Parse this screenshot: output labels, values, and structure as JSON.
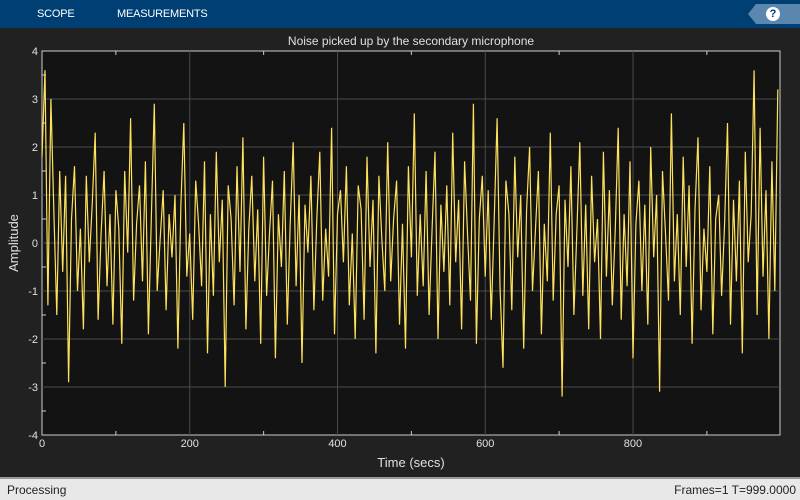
{
  "toolbar": {
    "tabs": [
      {
        "label": "SCOPE"
      },
      {
        "label": "MEASUREMENTS"
      }
    ],
    "help_icon": "question-mark-icon",
    "help_label": "?"
  },
  "status": {
    "left": "Processing",
    "right": "Frames=1  T=999.0000"
  },
  "colors": {
    "background": "#212121",
    "plot_bg": "#131313",
    "line": "#ffe25c",
    "toolbar": "#003f73"
  },
  "chart_data": {
    "type": "line",
    "title": "Noise picked up by the secondary microphone",
    "xlabel": "Time (secs)",
    "ylabel": "Amplitude",
    "xlim": [
      0,
      999
    ],
    "ylim": [
      -4,
      4
    ],
    "xticks": [
      0,
      200,
      400,
      600,
      800
    ],
    "yticks": [
      -4,
      -3,
      -2,
      -1,
      0,
      1,
      2,
      3,
      4
    ],
    "grid": true,
    "x_step": 4,
    "values": [
      1.8,
      3.6,
      -1.3,
      3.0,
      0.7,
      -1.5,
      1.5,
      -0.6,
      1.4,
      -2.9,
      0.5,
      1.6,
      -1.0,
      0.3,
      -1.8,
      1.4,
      -0.4,
      0.8,
      2.3,
      -1.6,
      0.2,
      1.5,
      -0.9,
      0.6,
      -1.7,
      1.1,
      0.3,
      -2.1,
      1.5,
      -0.2,
      2.6,
      -1.2,
      0.4,
      1.2,
      -0.8,
      1.7,
      -1.9,
      0.5,
      2.9,
      -1.0,
      0.1,
      1.1,
      -1.4,
      0.6,
      -0.3,
      1.0,
      -2.2,
      0.8,
      2.5,
      -0.7,
      0.2,
      -1.6,
      1.3,
      0.4,
      -0.9,
      1.7,
      -2.3,
      0.6,
      -1.1,
      1.9,
      -0.4,
      0.9,
      -3.0,
      1.2,
      0.5,
      -1.3,
      1.6,
      -0.6,
      2.2,
      -1.8,
      0.3,
      1.4,
      -0.8,
      0.7,
      -2.1,
      1.8,
      -1.1,
      0.2,
      1.3,
      -2.4,
      0.6,
      -0.5,
      1.5,
      -1.7,
      0.4,
      2.1,
      -0.9,
      1.0,
      -2.5,
      0.8,
      -0.2,
      1.4,
      -1.4,
      0.5,
      1.9,
      -1.2,
      0.3,
      -0.7,
      2.4,
      -1.9,
      0.6,
      1.1,
      -0.4,
      1.6,
      -1.3,
      0.2,
      -2.0,
      1.2,
      0.7,
      -1.6,
      1.8,
      -0.5,
      0.9,
      -2.3,
      1.4,
      0.1,
      -1.0,
      2.1,
      -0.8,
      0.5,
      1.3,
      -1.7,
      0.4,
      -2.2,
      1.6,
      -0.3,
      2.7,
      -1.1,
      0.6,
      -0.9,
      1.5,
      -1.5,
      0.3,
      1.9,
      -2.0,
      0.8,
      -0.6,
      1.2,
      -1.3,
      2.3,
      -0.4,
      0.9,
      -1.8,
      1.7,
      0.2,
      -1.2,
      2.9,
      -2.1,
      0.5,
      1.4,
      -0.7,
      1.1,
      -1.6,
      0.4,
      2.6,
      -0.9,
      -2.6,
      1.3,
      0.6,
      -1.4,
      1.8,
      -0.3,
      1.0,
      -2.2,
      0.7,
      2.0,
      -1.0,
      0.3,
      1.5,
      -1.9,
      0.4,
      -0.8,
      2.3,
      -1.2,
      0.6,
      1.2,
      -3.2,
      0.9,
      -0.5,
      1.6,
      -1.5,
      0.2,
      2.1,
      -1.1,
      0.8,
      -1.8,
      1.4,
      -0.4,
      0.5,
      -2.0,
      1.9,
      -0.7,
      1.1,
      -1.3,
      0.3,
      2.4,
      -1.6,
      0.6,
      -0.9,
      1.7,
      -2.4,
      0.4,
      1.3,
      -1.0,
      0.8,
      -1.7,
      2.0,
      -0.3,
      1.0,
      -3.1,
      1.5,
      0.2,
      -1.2,
      2.7,
      -0.8,
      0.6,
      -1.5,
      1.8,
      -0.5,
      1.2,
      -2.1,
      0.7,
      2.2,
      -1.4,
      0.3,
      -0.6,
      1.6,
      -1.9,
      0.5,
      1.0,
      -1.1,
      0.4,
      2.5,
      -1.7,
      0.9,
      -0.8,
      1.3,
      -2.3,
      1.9,
      -0.4,
      0.6,
      3.6,
      -1.5,
      2.4,
      -0.7,
      1.1,
      -2.0,
      1.7,
      -1.0,
      3.2
    ]
  }
}
